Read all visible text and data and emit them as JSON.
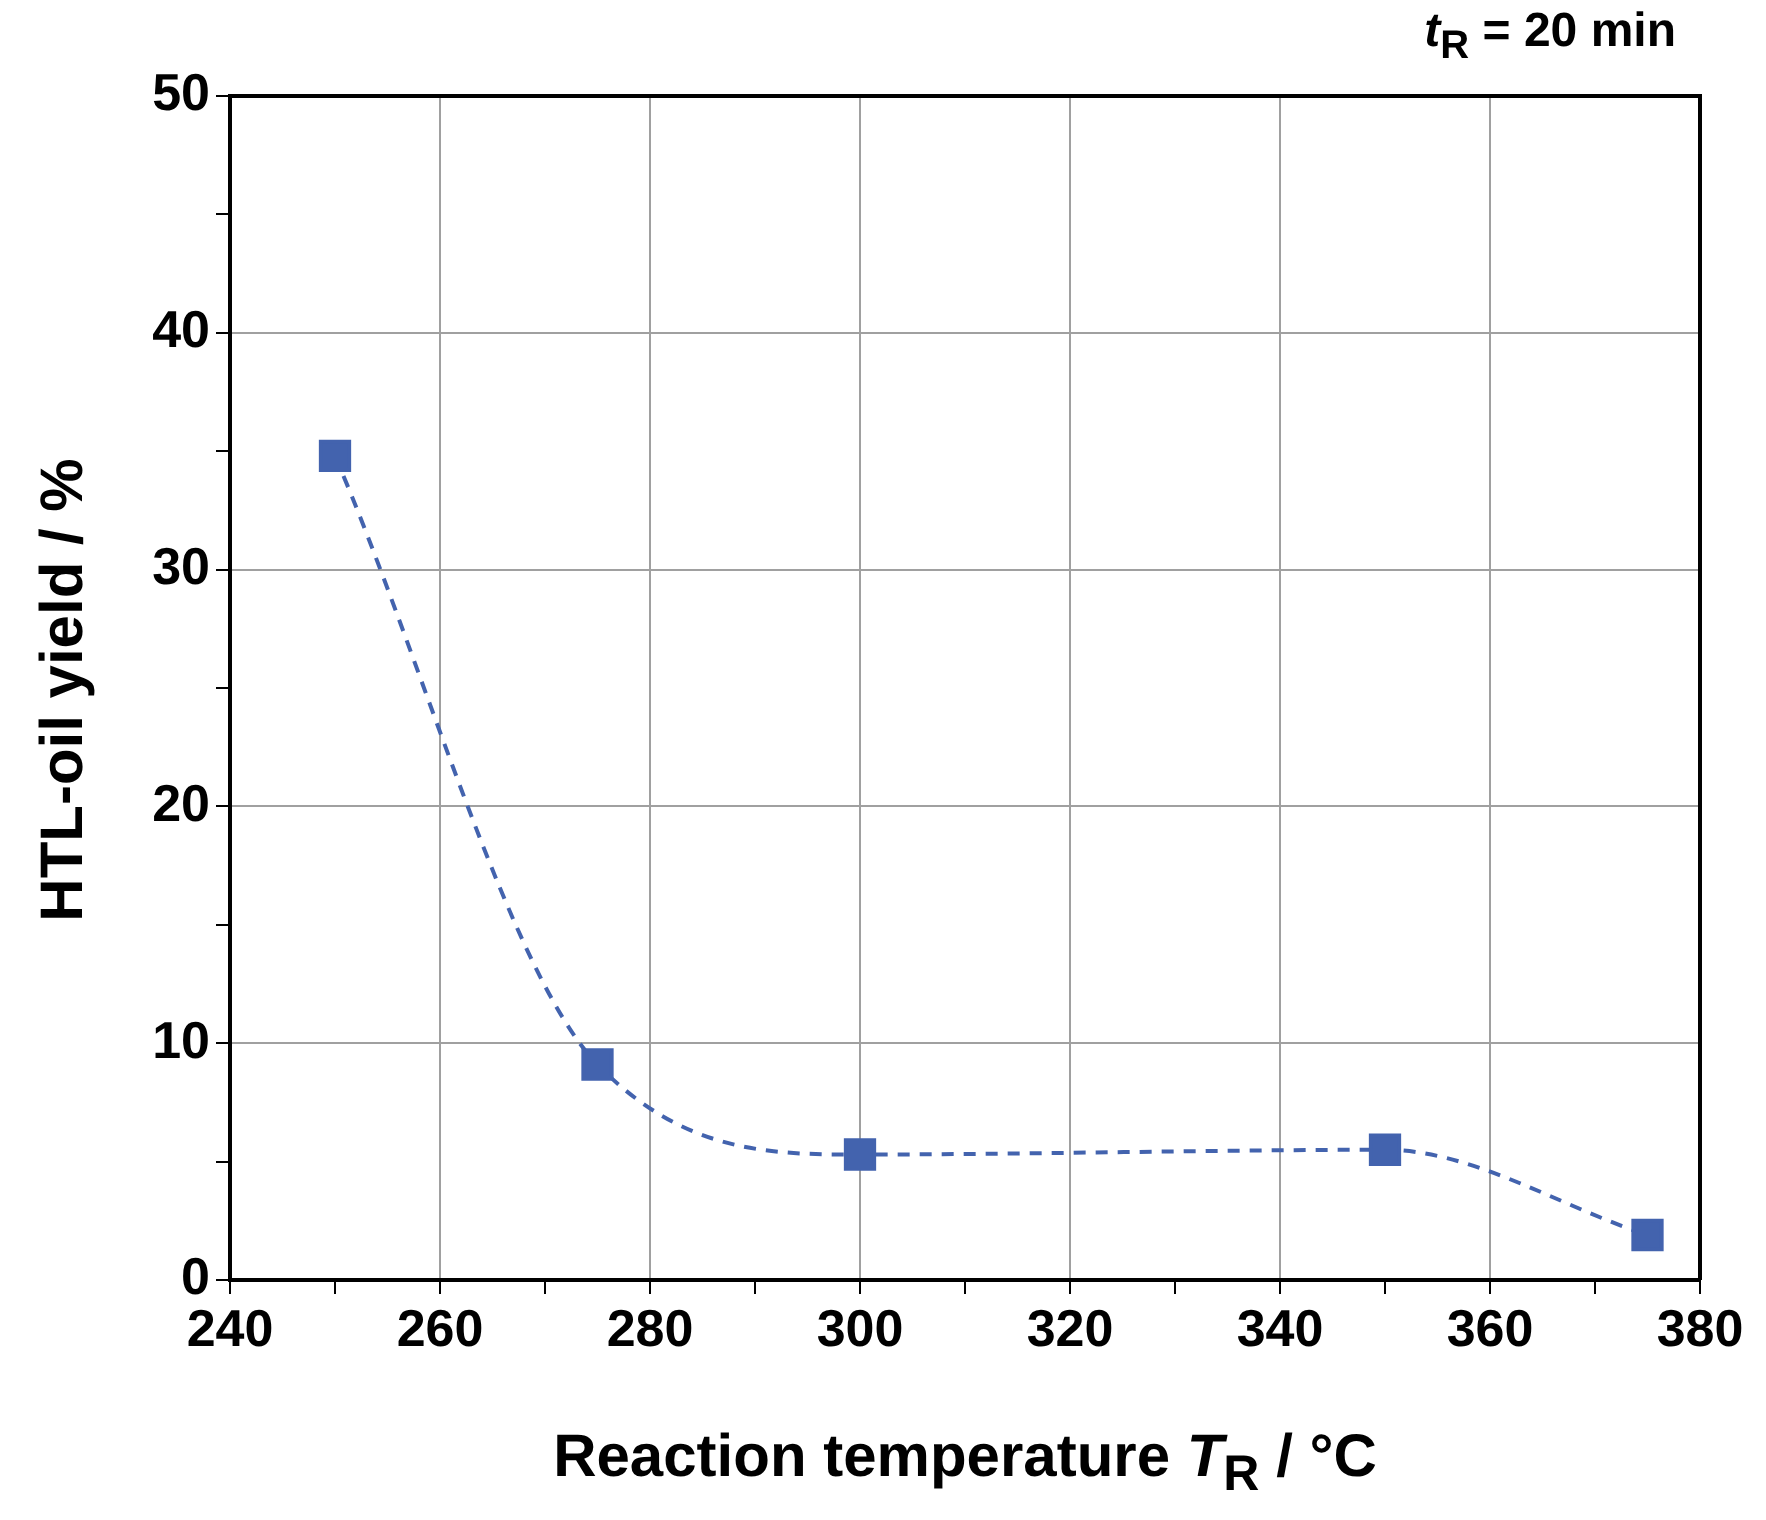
{
  "chart_data": {
    "type": "line",
    "title": "t$_{R}$ = 20 min",
    "xlabel": "Reaction temperature T$_{R}$ / °C",
    "ylabel": "HTL-oil yield / %",
    "x": [
      250,
      275,
      300,
      350,
      375
    ],
    "series": [
      {
        "color": "#4363ae",
        "values": [
          34.8,
          9.1,
          5.3,
          5.5,
          1.9
        ]
      }
    ],
    "xlim": [
      240,
      380
    ],
    "xticks": [
      240,
      {
        "value": 250,
        "label": null
      },
      260,
      {
        "value": 270,
        "label": null
      },
      280,
      {
        "value": 290,
        "label": null
      },
      300,
      {
        "value": 310,
        "label": null
      },
      320,
      {
        "value": 330,
        "label": null
      },
      340,
      {
        "value": 350,
        "label": null
      },
      360,
      {
        "value": 370,
        "label": null
      },
      380
    ],
    "ylim": [
      0,
      50
    ],
    "yticks": [
      0,
      {
        "value": 5,
        "label": null
      },
      10,
      {
        "value": 15,
        "label": null
      },
      20,
      {
        "value": 25,
        "label": null
      },
      30,
      {
        "value": 35,
        "label": null
      },
      40,
      {
        "value": 45,
        "label": null
      },
      50
    ],
    "grid": true,
    "legend": false,
    "marker": "square",
    "line_style": "dashed"
  }
}
